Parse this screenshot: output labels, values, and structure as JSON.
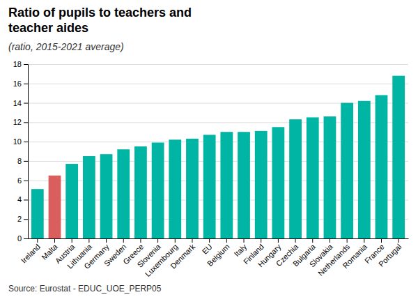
{
  "chart_data": {
    "type": "bar",
    "title": [
      "Ratio of pupils to teachers and",
      "teacher aides"
    ],
    "subtitle": "(ratio, 2015-2021 average)",
    "source": "Source: Eurostat - EDUC_UOE_PERP05",
    "categories": [
      "Ireland",
      "Malta",
      "Austria",
      "Lithuania",
      "Germany",
      "Sweden",
      "Greece",
      "Slovenia",
      "Luxembourg",
      "Denmark",
      "EU",
      "Belgium",
      "Italy",
      "Finland",
      "Hungary",
      "Czechia",
      "Bulgaria",
      "Slovakia",
      "Netherlands",
      "Romania",
      "France",
      "Portugal"
    ],
    "values": [
      5.1,
      6.5,
      7.7,
      8.5,
      8.7,
      9.2,
      9.5,
      9.9,
      10.2,
      10.3,
      10.7,
      11.0,
      11.0,
      11.1,
      11.5,
      12.3,
      12.5,
      12.6,
      14.0,
      14.2,
      14.8,
      16.8
    ],
    "colors": [
      "#00B5A4",
      "#D95F5F",
      "#00B5A4",
      "#00B5A4",
      "#00B5A4",
      "#00B5A4",
      "#00B5A4",
      "#00B5A4",
      "#00B5A4",
      "#00B5A4",
      "#00B5A4",
      "#00B5A4",
      "#00B5A4",
      "#00B5A4",
      "#00B5A4",
      "#00B5A4",
      "#00B5A4",
      "#00B5A4",
      "#00B5A4",
      "#00B5A4",
      "#00B5A4",
      "#00B5A4"
    ],
    "ylim": [
      0,
      18
    ],
    "yticks": [
      0,
      2,
      4,
      6,
      8,
      10,
      12,
      14,
      16,
      18
    ],
    "grid": true
  }
}
